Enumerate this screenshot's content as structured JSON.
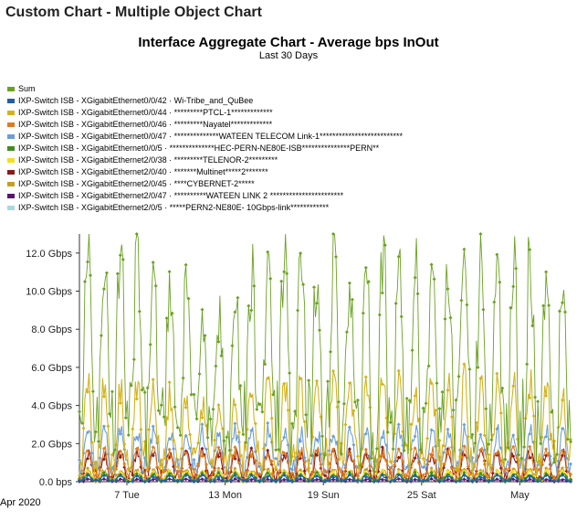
{
  "header": {
    "title": "Custom Chart - Multiple Object Chart"
  },
  "chart_data": {
    "type": "line",
    "title": "Interface Aggregate Chart - Average bps InOut",
    "subtitle": "Last 30 Days",
    "ylabel": "",
    "xlabel": "",
    "ylim": [
      0,
      13
    ],
    "x_range_days": [
      0,
      30
    ],
    "x_start_label": "Apr 2020",
    "yticks": [
      {
        "value": 0,
        "label": "0.0 bps"
      },
      {
        "value": 2,
        "label": "2.0 Gbps"
      },
      {
        "value": 4,
        "label": "4.0 Gbps"
      },
      {
        "value": 6,
        "label": "6.0 Gbps"
      },
      {
        "value": 8,
        "label": "8.0 Gbps"
      },
      {
        "value": 10,
        "label": "10.0 Gbps"
      },
      {
        "value": 12,
        "label": "12.0 Gbps"
      }
    ],
    "xticks": [
      {
        "day": 2.9,
        "label": "7 Tue"
      },
      {
        "day": 8.9,
        "label": "13 Mon"
      },
      {
        "day": 14.9,
        "label": "19 Sun"
      },
      {
        "day": 20.9,
        "label": "25 Sat"
      },
      {
        "day": 26.9,
        "label": "May"
      }
    ],
    "grid": false,
    "legend_position": "top",
    "series": [
      {
        "name": "Sum",
        "color": "#6aa121",
        "daily_peak": [
          11.5,
          11.8,
          12.1,
          11.6,
          11.0,
          11.3,
          10.5,
          9.0,
          8.8,
          9.6,
          11.2,
          11.3,
          11.9,
          12.0,
          11.6,
          12.1,
          11.0,
          11.7,
          12.0,
          11.2,
          11.0,
          11.8,
          11.7,
          12.2,
          11.5,
          11.2,
          11.9,
          12.2,
          11.5,
          11.0
        ],
        "daily_low": [
          3.5,
          3.0,
          3.2,
          3.4,
          2.9,
          2.6,
          2.5,
          3.0,
          2.8,
          3.2,
          3.1,
          2.8,
          3.0,
          2.7,
          3.0,
          3.1,
          3.2,
          2.9,
          3.0,
          2.7,
          3.1,
          3.3,
          2.9,
          3.0,
          3.2,
          2.8,
          3.0,
          3.1,
          2.9,
          3.0
        ]
      },
      {
        "name": "IXP-Switch ISB - XGigabitEthernet0/0/42 · Wi-Tribe_and_QuBee",
        "color": "#1f5fa8",
        "daily_peak": [
          0.3
        ],
        "daily_low": [
          0.02
        ]
      },
      {
        "name": "IXP-Switch ISB - XGigabitEthernet0/0/44 · *********PTCL-1*************",
        "color": "#d4b21a",
        "daily_peak": [
          5.2,
          5.0,
          4.8,
          5.1,
          4.7,
          4.4,
          4.2,
          3.9,
          3.8,
          4.1,
          4.6,
          4.9,
          5.1,
          5.2,
          5.0,
          5.1,
          4.8,
          5.0,
          5.1,
          4.9,
          4.7,
          5.0,
          5.2,
          5.3,
          5.0,
          4.9,
          5.1,
          5.4,
          4.9,
          4.6
        ],
        "daily_low": [
          1.3
        ]
      },
      {
        "name": "IXP-Switch ISB - XGigabitEthernet0/0/46 · *********Nayatel*************",
        "color": "#e07b1c",
        "daily_peak": [
          1.6
        ],
        "daily_low": [
          0.4
        ]
      },
      {
        "name": "IXP-Switch ISB - XGigabitEthernet0/0/47 · **************WATEEN TELECOM Link-1**************************",
        "color": "#6a9fd8",
        "daily_peak": [
          2.6
        ],
        "daily_low": [
          0.8
        ]
      },
      {
        "name": "IXP-Switch ISB - XGigabitEthernet0/0/5 · **************HEC-PERN-NE80E-ISB***************PERN**",
        "color": "#3e8e1f",
        "daily_peak": [
          0.4
        ],
        "daily_low": [
          0.05
        ]
      },
      {
        "name": "IXP-Switch ISB - XGigabitEthernet2/0/38 · *********TELENOR-2*********",
        "color": "#f0e020",
        "daily_peak": [
          0.5
        ],
        "daily_low": [
          0.05
        ]
      },
      {
        "name": "IXP-Switch ISB - XGigabitEthernet2/0/40 · *******Multinet*****2*******",
        "color": "#8b1a1a",
        "daily_peak": [
          1.5
        ],
        "daily_low": [
          0.3
        ]
      },
      {
        "name": "IXP-Switch ISB - XGigabitEthernet2/0/45 · ****CYBERNET-2*****",
        "color": "#c8a020",
        "daily_peak": [
          0.6
        ],
        "daily_low": [
          0.1
        ]
      },
      {
        "name": "IXP-Switch ISB - XGigabitEthernet2/0/47 · **********WATEEN LINK 2 ***********************",
        "color": "#5a1470",
        "daily_peak": [
          0.12
        ],
        "daily_low": [
          0.01
        ]
      },
      {
        "name": "IXP-Switch ISB - XGigabitEthernet2/0/5 · *****PERN2-NE80E- 10Gbps-link************",
        "color": "#a8d8e0",
        "daily_peak": [
          0.35
        ],
        "daily_low": [
          0.05
        ]
      }
    ]
  }
}
